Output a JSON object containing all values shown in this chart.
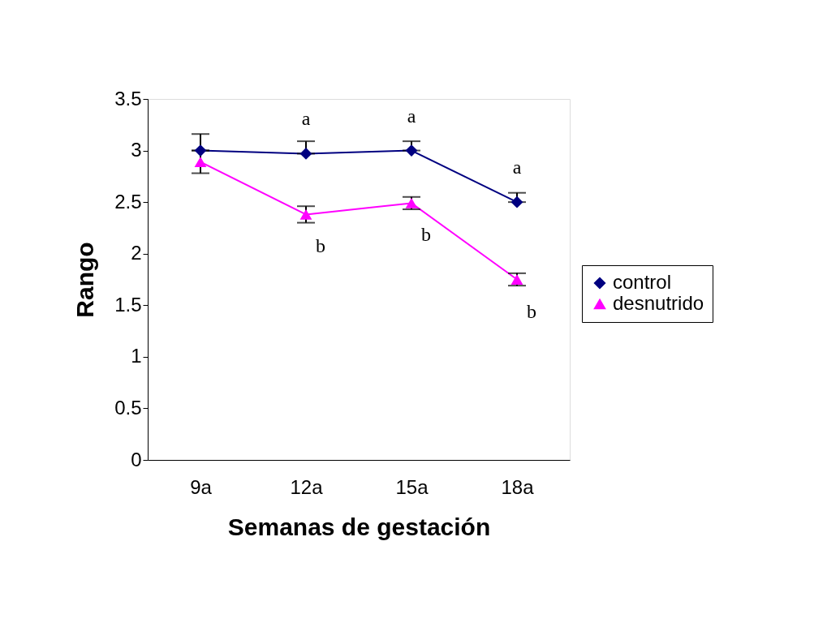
{
  "chart_data": {
    "type": "line",
    "xlabel": "Semanas de gestación",
    "ylabel": "Rango",
    "categories": [
      "9a",
      "12a",
      "15a",
      "18a"
    ],
    "series": [
      {
        "name": "control",
        "color": "#000080",
        "marker": "diamond",
        "values": [
          3.0,
          2.97,
          3.0,
          2.5
        ],
        "errors": [
          [
            3.0,
            3.16
          ],
          [
            2.97,
            3.09
          ],
          [
            3.0,
            3.09
          ],
          [
            2.5,
            2.59
          ]
        ]
      },
      {
        "name": "desnutrido",
        "color": "#ff00ff",
        "marker": "triangle",
        "values": [
          2.89,
          2.38,
          2.49,
          1.75
        ],
        "errors": [
          0.11,
          0.08,
          0.06,
          0.06
        ]
      }
    ],
    "ylim": [
      0,
      3.5
    ],
    "yticks": [
      {
        "value": 0,
        "label": "0"
      },
      0.5,
      {
        "value": 1,
        "label": "1"
      },
      1.5,
      {
        "value": 2,
        "label": "2"
      },
      2.5,
      {
        "value": 3,
        "label": "3"
      },
      3.5
    ],
    "grid": false,
    "legend": "right",
    "annotations": [
      {
        "text": "a",
        "x": "12a",
        "y": 2.97
      },
      {
        "text": "a",
        "x": "15a",
        "y": 3.0
      },
      {
        "text": "a",
        "x": "18a",
        "y": 2.5
      },
      {
        "text": "b",
        "x": "12a",
        "y": 2.38
      },
      {
        "text": "b",
        "x": "15a",
        "y": 2.49
      },
      {
        "text": "b",
        "x": "18a",
        "y": 1.75
      }
    ]
  }
}
